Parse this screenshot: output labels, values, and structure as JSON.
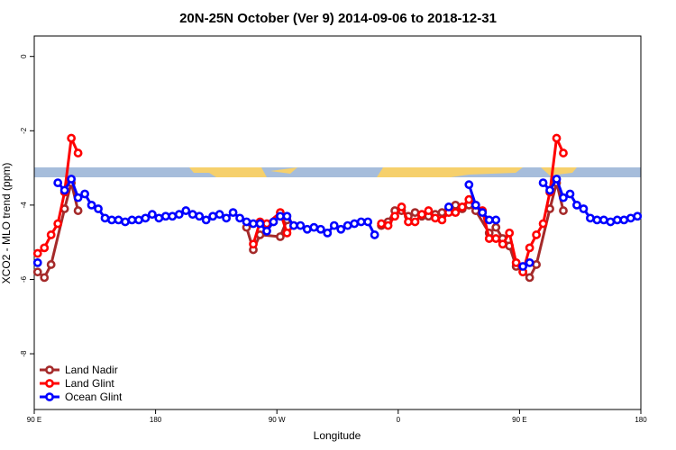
{
  "chart_data": {
    "type": "line",
    "title": "20N-25N October (Ver 9)   2014-09-06 to 2018-12-31",
    "x_label": "Longitude",
    "y_label": "XCO2 - MLO trend (ppm)",
    "xlim": [
      90,
      540
    ],
    "ylim": [
      -9.5,
      0.55
    ],
    "xticks": [
      {
        "value": 90,
        "label": "90 E"
      },
      180,
      {
        "value": 270,
        "label": "90 W"
      },
      {
        "value": 360,
        "label": "0"
      },
      {
        "value": 450,
        "label": "90 E"
      },
      {
        "value": 540,
        "label": "180"
      }
    ],
    "yticks": [
      0,
      -2,
      -4,
      -6,
      -8
    ],
    "legend": "bottom-left",
    "series": [
      {
        "name": "Land Nadir",
        "color": "#a52a2a",
        "x": [
          92.5,
          97.5,
          102.5,
          112.5,
          117.5,
          122.5,
          185,
          247.5,
          252.5,
          257.5,
          272.5,
          277.5,
          310,
          347.5,
          352.5,
          357.5,
          362.5,
          367.5,
          372.5,
          377.5,
          382.5,
          387.5,
          392.5,
          397.5,
          402.5,
          407.5,
          412.5,
          417.5,
          427.5,
          432.5,
          437.5,
          442.5,
          447.5,
          452.5,
          457.5,
          462.5,
          472.5,
          477.5,
          482.5
        ],
        "values": [
          -5.8,
          -5.95,
          -5.6,
          -4.1,
          -3.4,
          -4.15,
          null,
          -4.6,
          -5.2,
          -4.8,
          -4.85,
          -4.4,
          null,
          -4.55,
          -4.45,
          -4.15,
          -4.15,
          -4.3,
          -4.2,
          -4.3,
          -4.3,
          -4.25,
          -4.2,
          -4.1,
          -4.0,
          -4.1,
          -4.0,
          -4.15,
          -4.75,
          -4.6,
          -4.9,
          -5.1,
          -5.65,
          -5.8,
          -5.95,
          -5.6,
          -4.1,
          -3.4,
          -4.15
        ]
      },
      {
        "name": "Land Glint",
        "color": "#ff0000",
        "x": [
          92.5,
          97.5,
          102.5,
          107.5,
          112.5,
          117.5,
          122.5,
          185,
          252.5,
          257.5,
          262.5,
          272.5,
          277.5,
          282.5,
          315,
          347.5,
          352.5,
          357.5,
          362.5,
          367.5,
          372.5,
          377.5,
          382.5,
          387.5,
          392.5,
          397.5,
          402.5,
          407.5,
          412.5,
          417.5,
          422.5,
          427.5,
          432.5,
          437.5,
          442.5,
          447.5,
          452.5,
          457.5,
          462.5,
          467.5,
          472.5,
          477.5,
          482.5
        ],
        "values": [
          -5.3,
          -5.15,
          -4.8,
          -4.5,
          -3.65,
          -2.2,
          -2.6,
          null,
          -5.05,
          -4.45,
          -4.5,
          -4.2,
          -4.75,
          -4.55,
          null,
          -4.5,
          -4.55,
          -4.3,
          -4.05,
          -4.45,
          -4.45,
          -4.25,
          -4.15,
          -4.35,
          -4.4,
          -4.2,
          -4.2,
          -4.05,
          -3.85,
          -4.0,
          -4.15,
          -4.9,
          -4.9,
          -5.05,
          -4.75,
          -5.55,
          -5.8,
          -5.15,
          -4.8,
          -4.5,
          -3.65,
          -2.2,
          -2.6
        ]
      },
      {
        "name": "Ocean Glint",
        "color": "#0000ff",
        "x": [
          92.5,
          100,
          107.5,
          112.5,
          117.5,
          122.5,
          127.5,
          132.5,
          137.5,
          142.5,
          147.5,
          152.5,
          157.5,
          162.5,
          167.5,
          172.5,
          177.5,
          182.5,
          187.5,
          192.5,
          197.5,
          202.5,
          207.5,
          212.5,
          217.5,
          222.5,
          227.5,
          232.5,
          237.5,
          242.5,
          247.5,
          252.5,
          257.5,
          262.5,
          267.5,
          272.5,
          277.5,
          282.5,
          287.5,
          292.5,
          297.5,
          302.5,
          307.5,
          312.5,
          317.5,
          322.5,
          327.5,
          332.5,
          337.5,
          342.5,
          370,
          397.5,
          405,
          412.5,
          417.5,
          422.5,
          427.5,
          432.5,
          442,
          452.5,
          457.5,
          462,
          467.5,
          472.5,
          477.5,
          482.5,
          487.5,
          492.5,
          497.5,
          502.5,
          507.5,
          512.5,
          517.5,
          522.5,
          527.5,
          532.5,
          537.5
        ],
        "values": [
          -5.55,
          null,
          -3.4,
          -3.6,
          -3.3,
          -3.8,
          -3.7,
          -4.0,
          -4.1,
          -4.35,
          -4.4,
          -4.4,
          -4.45,
          -4.4,
          -4.4,
          -4.35,
          -4.25,
          -4.35,
          -4.3,
          -4.3,
          -4.25,
          -4.15,
          -4.25,
          -4.3,
          -4.4,
          -4.3,
          -4.25,
          -4.35,
          -4.2,
          -4.35,
          -4.45,
          -4.5,
          -4.5,
          -4.7,
          -4.45,
          -4.3,
          -4.3,
          -4.55,
          -4.55,
          -4.65,
          -4.6,
          -4.65,
          -4.75,
          -4.55,
          -4.65,
          -4.55,
          -4.5,
          -4.45,
          -4.45,
          -4.8,
          null,
          -4.05,
          null,
          -3.45,
          -4.0,
          -4.2,
          -4.4,
          -4.4,
          null,
          -5.65,
          -5.55,
          null,
          -3.4,
          -3.6,
          -3.3,
          -3.8,
          -3.7,
          -4.0,
          -4.1,
          -4.35,
          -4.4,
          -4.4,
          -4.45,
          -4.4,
          -4.4,
          -4.35,
          -4.3
        ]
      }
    ]
  }
}
